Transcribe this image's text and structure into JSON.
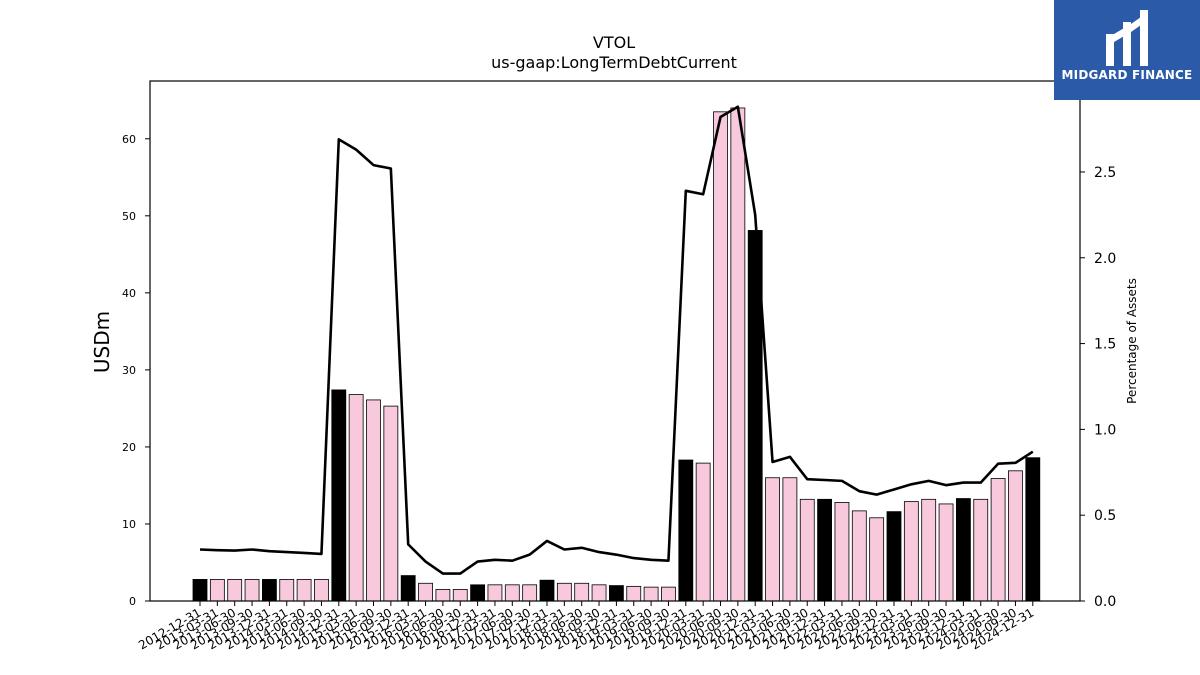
{
  "chart_data": {
    "type": "bar",
    "title": "VTOL",
    "subtitle": "us-gaap:LongTermDebtCurrent",
    "ylabel": "USDm",
    "y2label": "Percentage of Assets",
    "ylim": [
      0,
      67.5
    ],
    "y2lim": [
      0,
      3.03
    ],
    "yticks": [
      0,
      10,
      20,
      30,
      40,
      50,
      60
    ],
    "y2ticks": [
      "0.0",
      "0.5",
      "1.0",
      "1.5",
      "2.0",
      "2.5"
    ],
    "categories": [
      "2012-12-31",
      "2013-03-31",
      "2013-06-30",
      "2013-09-30",
      "2013-12-31",
      "2014-03-31",
      "2014-06-30",
      "2014-09-30",
      "2014-12-31",
      "2015-03-31",
      "2015-06-30",
      "2015-09-30",
      "2015-12-31",
      "2016-03-31",
      "2016-06-30",
      "2016-09-30",
      "2016-12-31",
      "2017-03-31",
      "2017-06-30",
      "2017-09-30",
      "2017-12-31",
      "2018-03-31",
      "2018-06-30",
      "2018-09-30",
      "2018-12-31",
      "2019-03-31",
      "2019-06-30",
      "2019-09-30",
      "2019-12-31",
      "2020-03-31",
      "2020-06-30",
      "2020-09-30",
      "2020-12-31",
      "2021-03-31",
      "2021-06-30",
      "2021-09-30",
      "2021-12-31",
      "2022-03-31",
      "2022-06-30",
      "2022-09-30",
      "2022-12-31",
      "2023-03-31",
      "2023-06-30",
      "2023-09-30",
      "2023-12-31",
      "2024-03-31",
      "2024-06-30",
      "2024-09-30",
      "2024-12-31"
    ],
    "xtick_labels": [
      "2012-12-31",
      "2013-03-31",
      "2013-06-30",
      "2013-09-30",
      "2013-12-31",
      "2014-03-31",
      "2014-06-30",
      "2014-09-30",
      "2014-12-31",
      "2015-03-31",
      "2015-06-30",
      "2015-09-30",
      "2015-12-31",
      "2016-03-31",
      "2016-06-30",
      "2016-09-30",
      "2016-12-31",
      "2017-03-31",
      "2017-06-30",
      "2017-09-30",
      "2017-12-31",
      "2018-03-31",
      "2018-06-30",
      "2018-09-30",
      "2018-12-31",
      "2019-03-31",
      "2019-06-30",
      "2019-09-30",
      "2019-12-31",
      "2020-03-31",
      "2020-06-30",
      "2020-09-30",
      "2020-12-31",
      "2021-03-31",
      "2021-06-30",
      "2021-09-30",
      "2021-12-31",
      "2022-03-31",
      "2022-06-30",
      "2022-09-30",
      "2022-12-31",
      "2023-03-31",
      "2023-06-30",
      "2023-09-30",
      "2023-12-31",
      "2024-03-31",
      "2024-06-30",
      "2024-09-30",
      "2024-12-31"
    ],
    "series": [
      {
        "type": "bar",
        "values": [
          2.8,
          2.8,
          2.8,
          2.8,
          2.8,
          2.8,
          2.8,
          2.8,
          27.4,
          26.8,
          26.1,
          25.3,
          3.3,
          2.3,
          1.5,
          1.5,
          2.1,
          2.1,
          2.1,
          2.1,
          2.7,
          2.3,
          2.3,
          2.1,
          2.0,
          1.9,
          1.8,
          1.8,
          18.3,
          17.9,
          63.5,
          64.0,
          48.1,
          16.0,
          16.0,
          13.2,
          13.2,
          12.8,
          11.7,
          10.8,
          11.6,
          12.9,
          13.2,
          12.6,
          13.3,
          13.2,
          15.9,
          16.9,
          18.6
        ],
        "colors": {
          "year_end": "#000000",
          "quarter": "#f8c8dc",
          "edge": "#000000"
        }
      },
      {
        "type": "line",
        "axis": "right",
        "color": "#000000",
        "values": [
          0.3,
          0.296,
          0.294,
          0.3,
          0.29,
          0.285,
          0.28,
          0.274,
          2.69,
          2.63,
          2.54,
          2.52,
          0.33,
          0.23,
          0.16,
          0.16,
          0.23,
          0.24,
          0.235,
          0.27,
          0.35,
          0.3,
          0.31,
          0.285,
          0.27,
          0.25,
          0.24,
          0.235,
          2.39,
          2.37,
          2.82,
          2.88,
          2.25,
          0.81,
          0.84,
          0.71,
          0.705,
          0.7,
          0.64,
          0.62,
          0.65,
          0.68,
          0.7,
          0.675,
          0.69,
          0.69,
          0.8,
          0.805,
          0.87
        ]
      }
    ],
    "grid": false,
    "legend": "none"
  },
  "logo": {
    "text": "MIDGARD FINANCE",
    "color": "#2a5aa8",
    "icon": "midgard-logo-icon"
  }
}
